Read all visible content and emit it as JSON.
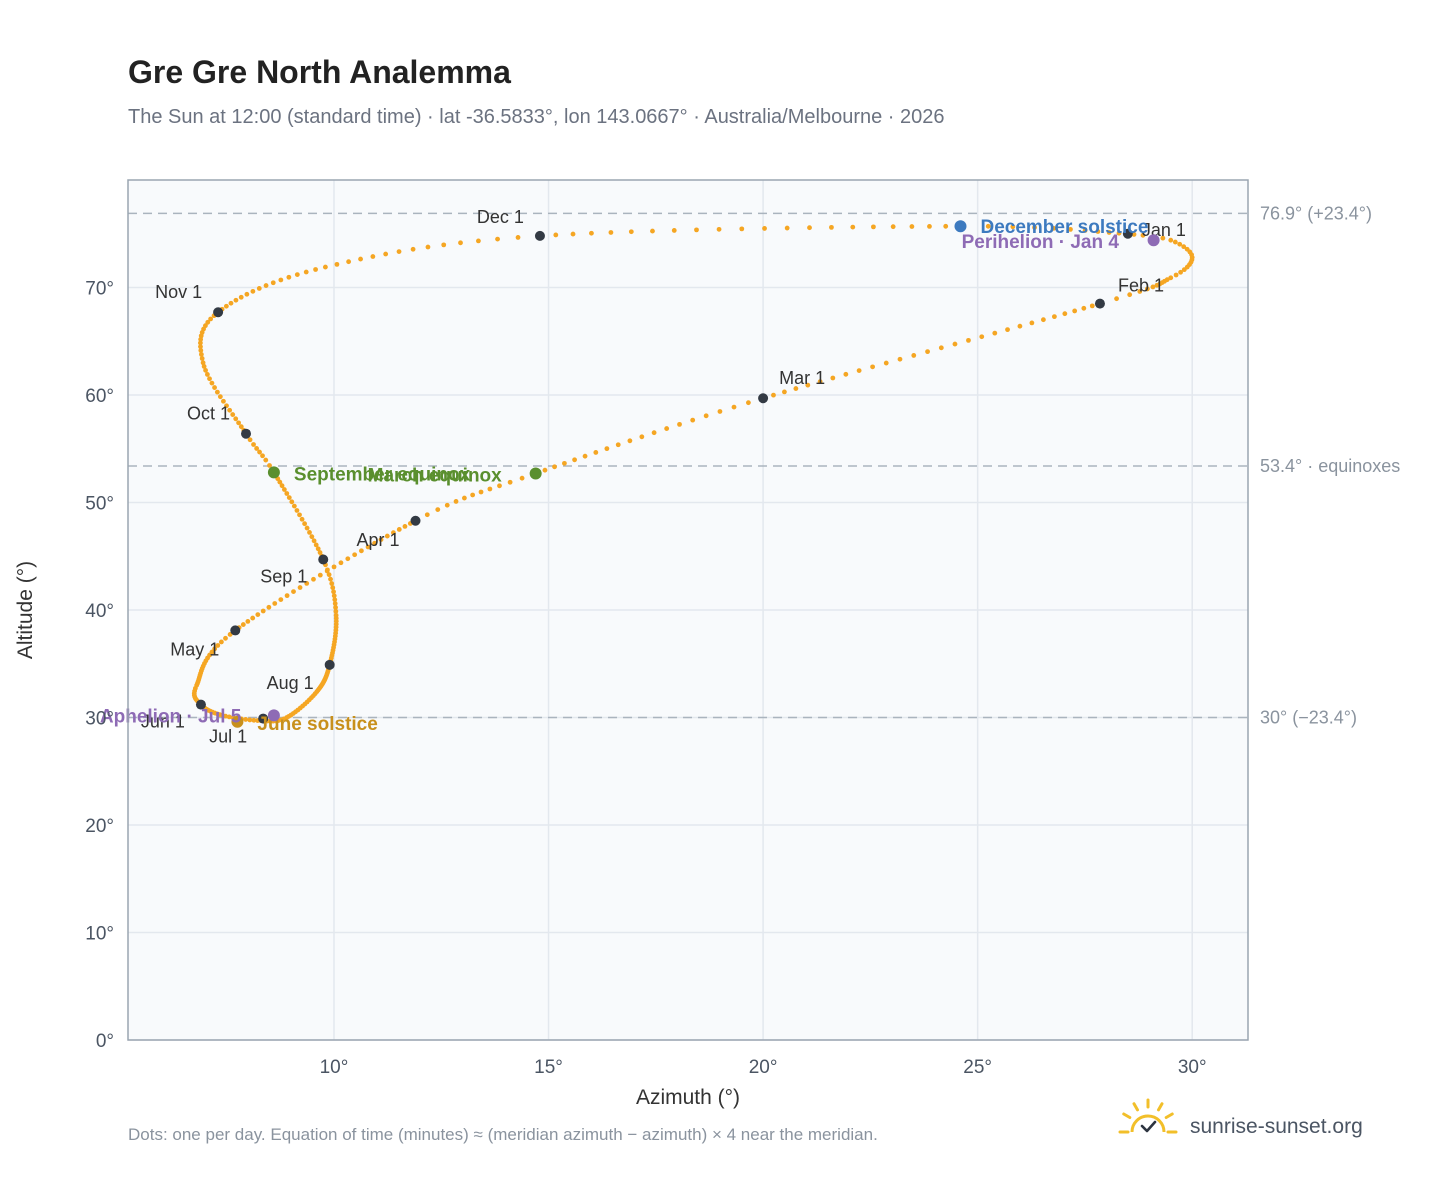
{
  "title": "Gre Gre North Analemma",
  "subtitle": "The Sun at 12:00 (standard time) · lat -36.5833°, lon 143.0667° · Australia/Melbourne · 2026",
  "footnote": "Dots: one per day. Equation of time (minutes) ≈ (meridian azimuth − azimuth) × 4 near the meridian.",
  "brand": "sunrise-sunset.org",
  "colors": {
    "curve": "#f5a623",
    "month_marker": "#333a44",
    "equinox": "#5a8f2e",
    "december_solstice": "#3d7abf",
    "june_solstice": "#c8901c",
    "aphelion_perihelion": "#8e6bb5",
    "plot_bg": "#f8fafc",
    "grid": "#e3e8ee",
    "ref_line": "#aab4be",
    "frame": "#9aa5b1",
    "logo": "#f2bf2a"
  },
  "chart_data": {
    "type": "scatter",
    "xlabel": "Azimuth (°)",
    "ylabel": "Altitude (°)",
    "xlim": [
      5.2,
      31.3
    ],
    "ylim": [
      0,
      80
    ],
    "xticks": [
      {
        "value": 10,
        "label": "10°"
      },
      {
        "value": 15,
        "label": "15°"
      },
      {
        "value": 20,
        "label": "20°"
      },
      {
        "value": 25,
        "label": "25°"
      },
      {
        "value": 30,
        "label": "30°"
      }
    ],
    "yticks": [
      {
        "value": 0,
        "label": "0°"
      },
      {
        "value": 10,
        "label": "10°"
      },
      {
        "value": 20,
        "label": "20°"
      },
      {
        "value": 30,
        "label": "30°"
      },
      {
        "value": 40,
        "label": "40°"
      },
      {
        "value": 50,
        "label": "50°"
      },
      {
        "value": 60,
        "label": "60°"
      },
      {
        "value": 70,
        "label": "70°"
      }
    ],
    "reference_lines": [
      {
        "altitude": 76.9,
        "label": "76.9° (+23.4°)"
      },
      {
        "altitude": 53.4,
        "label": "53.4° · equinoxes"
      },
      {
        "altitude": 30.0,
        "label": "30° (−23.4°)"
      }
    ],
    "path_keypoints": [
      {
        "day": 0,
        "az": 28.5,
        "alt": 75.0
      },
      {
        "day": 5,
        "az": 29.5,
        "alt": 74.4
      },
      {
        "day": 12,
        "az": 30.0,
        "alt": 72.8
      },
      {
        "day": 20,
        "az": 29.5,
        "alt": 70.9
      },
      {
        "day": 31,
        "az": 27.85,
        "alt": 68.5
      },
      {
        "day": 59,
        "az": 20.0,
        "alt": 59.7
      },
      {
        "day": 78,
        "az": 14.7,
        "alt": 52.7
      },
      {
        "day": 90,
        "az": 11.9,
        "alt": 48.3
      },
      {
        "day": 120,
        "az": 7.7,
        "alt": 38.1
      },
      {
        "day": 140,
        "az": 6.8,
        "alt": 33.0
      },
      {
        "day": 151,
        "az": 6.9,
        "alt": 31.2
      },
      {
        "day": 162,
        "az": 7.4,
        "alt": 30.2
      },
      {
        "day": 172,
        "az": 8.3,
        "alt": 29.7
      },
      {
        "day": 181,
        "az": 8.9,
        "alt": 30.0
      },
      {
        "day": 195,
        "az": 9.6,
        "alt": 32.4
      },
      {
        "day": 212,
        "az": 9.9,
        "alt": 34.9
      },
      {
        "day": 230,
        "az": 10.05,
        "alt": 39.5
      },
      {
        "day": 243,
        "az": 9.75,
        "alt": 44.7
      },
      {
        "day": 265,
        "az": 8.6,
        "alt": 52.8
      },
      {
        "day": 273,
        "az": 7.95,
        "alt": 56.4
      },
      {
        "day": 290,
        "az": 6.95,
        "alt": 63.0
      },
      {
        "day": 304,
        "az": 7.3,
        "alt": 67.7
      },
      {
        "day": 320,
        "az": 9.8,
        "alt": 71.9
      },
      {
        "day": 334,
        "az": 14.8,
        "alt": 74.8
      },
      {
        "day": 355,
        "az": 24.6,
        "alt": 75.7
      },
      {
        "day": 365,
        "az": 28.5,
        "alt": 75.0
      }
    ],
    "month_markers": [
      {
        "label": "Jan 1",
        "az": 28.5,
        "alt": 75.0,
        "anchor": "start",
        "dx": 14,
        "dy": 2
      },
      {
        "label": "Feb 1",
        "az": 27.85,
        "alt": 68.5,
        "anchor": "start",
        "dx": 18,
        "dy": -12
      },
      {
        "label": "Mar 1",
        "az": 20.0,
        "alt": 59.7,
        "anchor": "start",
        "dx": 16,
        "dy": -14
      },
      {
        "label": "Apr 1",
        "az": 11.9,
        "alt": 48.3,
        "anchor": "end",
        "dx": -16,
        "dy": 25
      },
      {
        "label": "May 1",
        "az": 7.7,
        "alt": 38.1,
        "anchor": "end",
        "dx": -16,
        "dy": 25
      },
      {
        "label": "Jun 1",
        "az": 6.9,
        "alt": 31.2,
        "anchor": "end",
        "dx": -16,
        "dy": 23
      },
      {
        "label": "Jul 1",
        "az": 8.35,
        "alt": 29.9,
        "anchor": "end",
        "dx": -16,
        "dy": 24
      },
      {
        "label": "Aug 1",
        "az": 9.9,
        "alt": 34.9,
        "anchor": "end",
        "dx": -16,
        "dy": 24
      },
      {
        "label": "Sep 1",
        "az": 9.75,
        "alt": 44.7,
        "anchor": "end",
        "dx": -16,
        "dy": 23
      },
      {
        "label": "Oct 1",
        "az": 7.95,
        "alt": 56.4,
        "anchor": "end",
        "dx": -16,
        "dy": -14
      },
      {
        "label": "Nov 1",
        "az": 7.3,
        "alt": 67.7,
        "anchor": "end",
        "dx": -16,
        "dy": -14
      },
      {
        "label": "Dec 1",
        "az": 14.8,
        "alt": 74.8,
        "anchor": "end",
        "dx": -16,
        "dy": -13
      }
    ],
    "events": [
      {
        "label": "December solstice",
        "az": 24.6,
        "alt": 75.7,
        "color_key": "december_solstice",
        "dx": 20,
        "dy": 7
      },
      {
        "label": "Perihelion · Jan 4",
        "az": 29.1,
        "alt": 74.4,
        "color_key": "aphelion_perihelion",
        "dx": -192,
        "dy": 8
      },
      {
        "label": "September equinox",
        "az": 8.6,
        "alt": 52.8,
        "color_key": "equinox",
        "dx": 20,
        "dy": 8
      },
      {
        "label": "March equinox",
        "az": 14.7,
        "alt": 52.7,
        "color_key": "equinox",
        "dx": -168,
        "dy": 8
      },
      {
        "label": "June solstice",
        "az": 7.75,
        "alt": 29.6,
        "color_key": "june_solstice",
        "dx": 20,
        "dy": 8
      },
      {
        "label": "Aphelion · Jul 5",
        "az": 8.6,
        "alt": 30.2,
        "color_key": "aphelion_perihelion",
        "dx": -174,
        "dy": 7
      }
    ]
  }
}
